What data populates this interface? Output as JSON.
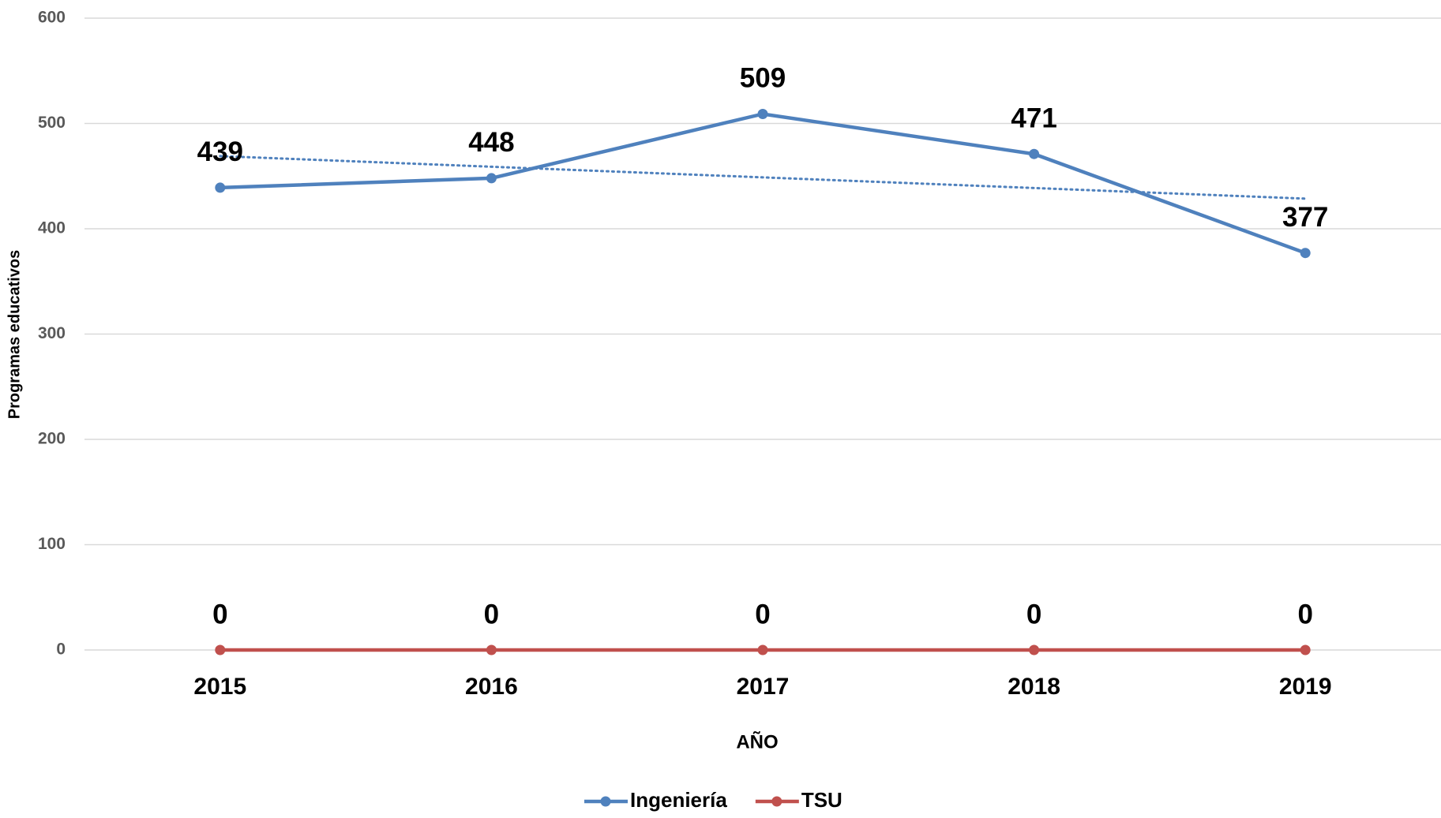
{
  "chart_data": {
    "type": "line",
    "x_label": "AÑO",
    "y_label": "Programas educativos",
    "categories": [
      "2015",
      "2016",
      "2017",
      "2018",
      "2019"
    ],
    "series": [
      {
        "name": "Ingeniería",
        "color": "#4f81bd",
        "values": [
          439,
          448,
          509,
          471,
          377
        ],
        "trendline": true
      },
      {
        "name": "TSU",
        "color": "#c0504d",
        "values": [
          0,
          0,
          0,
          0,
          0
        ]
      }
    ],
    "ylim": [
      0,
      600
    ],
    "yticks": [
      0,
      100,
      200,
      300,
      400,
      500,
      600
    ],
    "grid": true,
    "legend": "bottom"
  }
}
